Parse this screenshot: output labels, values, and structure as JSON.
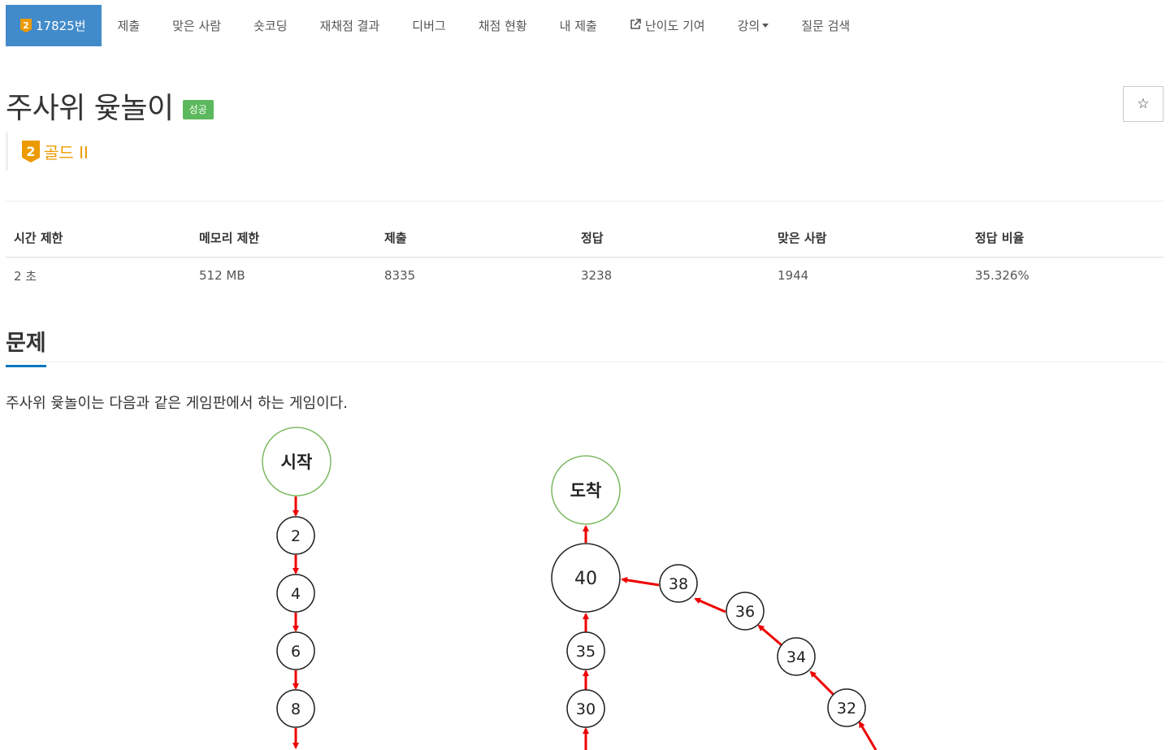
{
  "nav": {
    "problem_number": "17825번",
    "tier_number": "2",
    "items": [
      "제출",
      "맞은 사람",
      "숏코딩",
      "재채점 결과",
      "디버그",
      "채점 현황",
      "내 제출",
      "난이도 기여",
      "강의",
      "질문 검색"
    ]
  },
  "problem": {
    "title": "주사위 윷놀이",
    "status": "성공",
    "star": "☆",
    "tier_number": "2",
    "tier_label": "골드 II"
  },
  "table": {
    "headers": [
      "시간 제한",
      "메모리 제한",
      "제출",
      "정답",
      "맞은 사람",
      "정답 비율"
    ],
    "values": [
      "2 초",
      "512 MB",
      "8335",
      "3238",
      "1944",
      "35.326%"
    ]
  },
  "section": {
    "heading": "문제",
    "description": "주사위 윷놀이는 다음과 같은 게임판에서 하는 게임이다."
  },
  "board": {
    "start_label": "시작",
    "end_label": "도착",
    "left_column": [
      "2",
      "4",
      "6",
      "8"
    ],
    "center_column": [
      "40",
      "35",
      "30"
    ],
    "arc": [
      "38",
      "36",
      "34",
      "32"
    ],
    "arrow_color": "#ee0000",
    "special_circle_color": "#7cb962"
  },
  "colors": {
    "accent": "#428bca",
    "gold": "#ec9a00",
    "success": "#5cb85c",
    "section_underline": "#0076c0"
  }
}
